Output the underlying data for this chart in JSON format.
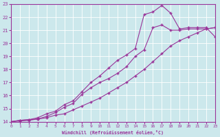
{
  "xlabel": "Windchill (Refroidissement éolien,°C)",
  "xlim": [
    0,
    23
  ],
  "ylim": [
    14,
    23
  ],
  "yticks": [
    14,
    15,
    16,
    17,
    18,
    19,
    20,
    21,
    22,
    23
  ],
  "xticks": [
    0,
    1,
    2,
    3,
    4,
    5,
    6,
    7,
    8,
    9,
    10,
    11,
    12,
    13,
    14,
    15,
    16,
    17,
    18,
    19,
    20,
    21,
    22,
    23
  ],
  "background_color": "#cce8ec",
  "grid_color": "#ffffff",
  "line_color": "#993399",
  "line1_x": [
    0,
    1,
    2,
    3,
    4,
    5,
    6,
    7,
    8,
    9,
    10,
    11,
    12,
    13,
    14,
    15,
    16,
    17,
    18,
    19,
    20,
    21,
    22,
    23
  ],
  "line1_y": [
    14.0,
    14.1,
    14.15,
    14.2,
    14.3,
    14.5,
    14.6,
    14.9,
    15.2,
    15.5,
    15.8,
    16.2,
    16.6,
    17.0,
    17.5,
    18.0,
    18.6,
    19.2,
    19.8,
    20.2,
    20.5,
    20.8,
    21.1,
    21.2
  ],
  "line2_x": [
    0,
    1,
    2,
    3,
    4,
    5,
    6,
    7,
    8,
    9,
    10,
    11,
    12,
    13,
    14,
    15,
    16,
    17,
    18,
    19,
    20,
    21,
    22,
    23
  ],
  "line2_y": [
    14.0,
    14.05,
    14.1,
    14.2,
    14.4,
    14.7,
    15.1,
    15.4,
    16.1,
    16.6,
    17.0,
    17.3,
    17.7,
    18.2,
    19.0,
    19.5,
    21.2,
    21.4,
    21.0,
    21.0,
    21.1,
    21.1,
    21.1,
    21.2
  ],
  "line3_x": [
    0,
    1,
    2,
    3,
    4,
    5,
    6,
    7,
    8,
    9,
    10,
    11,
    12,
    13,
    14,
    15,
    16,
    17,
    18,
    19,
    20,
    21,
    22,
    23
  ],
  "line3_y": [
    14.0,
    14.1,
    14.15,
    14.3,
    14.6,
    14.8,
    15.3,
    15.6,
    16.3,
    17.0,
    17.5,
    18.1,
    18.7,
    19.1,
    19.6,
    22.2,
    22.4,
    22.9,
    22.3,
    21.1,
    21.2,
    21.2,
    21.2,
    20.5
  ]
}
